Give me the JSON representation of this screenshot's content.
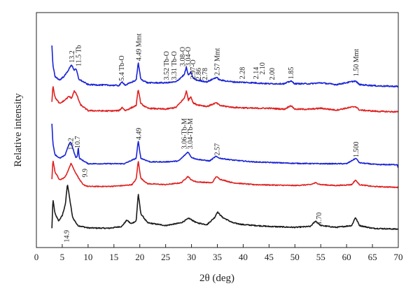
{
  "chart_data": {
    "type": "line",
    "xlabel": "2θ (deg)",
    "ylabel": "Relative intensity",
    "xlim": [
      0,
      70
    ],
    "xticks": [
      "0",
      "5",
      "10",
      "15",
      "20",
      "25",
      "30",
      "35",
      "40",
      "45",
      "50",
      "55",
      "60",
      "65",
      "70"
    ],
    "y_ticks_shown": false,
    "grid": false,
    "legend": "none",
    "series": [
      {
        "color": "#1a1a1a",
        "offset": 0,
        "noise": 0.03,
        "points": [
          [
            3.0,
            0.1
          ],
          [
            3.2,
            1.7
          ],
          [
            3.6,
            0.9
          ],
          [
            4.3,
            0.5
          ],
          [
            5.0,
            0.8
          ],
          [
            5.6,
            1.4
          ],
          [
            6.0,
            2.55
          ],
          [
            6.4,
            1.8
          ],
          [
            7.0,
            0.7
          ],
          [
            8.0,
            0.25
          ],
          [
            10,
            0.12
          ],
          [
            14,
            0.1
          ],
          [
            16.5,
            0.2
          ],
          [
            17.5,
            0.55
          ],
          [
            18.3,
            0.35
          ],
          [
            19.3,
            0.5
          ],
          [
            19.7,
            2.0
          ],
          [
            20.2,
            0.9
          ],
          [
            21.5,
            0.4
          ],
          [
            25,
            0.25
          ],
          [
            28,
            0.4
          ],
          [
            29.5,
            0.65
          ],
          [
            31,
            0.4
          ],
          [
            33,
            0.3
          ],
          [
            34.5,
            0.7
          ],
          [
            35.0,
            1.0
          ],
          [
            36,
            0.7
          ],
          [
            38,
            0.4
          ],
          [
            40,
            0.3
          ],
          [
            45,
            0.2
          ],
          [
            50,
            0.15
          ],
          [
            53,
            0.2
          ],
          [
            54,
            0.5
          ],
          [
            55,
            0.25
          ],
          [
            58,
            0.15
          ],
          [
            61,
            0.25
          ],
          [
            61.7,
            0.7
          ],
          [
            62.5,
            0.25
          ],
          [
            65,
            0.1
          ],
          [
            70,
            0.05
          ]
        ]
      },
      {
        "color": "#e02020",
        "offset": 2.3,
        "noise": 0.025,
        "points": [
          [
            3.0,
            0.5
          ],
          [
            3.2,
            1.55
          ],
          [
            3.6,
            0.9
          ],
          [
            4.5,
            0.45
          ],
          [
            5.5,
            0.6
          ],
          [
            6.2,
            1.0
          ],
          [
            6.7,
            1.4
          ],
          [
            7.3,
            1.0
          ],
          [
            8.3,
            0.5
          ],
          [
            9.0,
            0.2
          ],
          [
            10,
            0.1
          ],
          [
            14,
            0.1
          ],
          [
            17,
            0.15
          ],
          [
            18.5,
            0.2
          ],
          [
            19.3,
            0.5
          ],
          [
            19.7,
            1.5
          ],
          [
            20.2,
            0.55
          ],
          [
            21.5,
            0.25
          ],
          [
            25,
            0.2
          ],
          [
            28,
            0.3
          ],
          [
            29.3,
            0.65
          ],
          [
            30,
            0.45
          ],
          [
            31,
            0.35
          ],
          [
            34,
            0.3
          ],
          [
            34.8,
            0.65
          ],
          [
            35.5,
            0.5
          ],
          [
            38,
            0.3
          ],
          [
            42,
            0.2
          ],
          [
            50,
            0.15
          ],
          [
            53,
            0.2
          ],
          [
            54,
            0.3
          ],
          [
            55,
            0.2
          ],
          [
            58,
            0.15
          ],
          [
            61,
            0.2
          ],
          [
            61.7,
            0.45
          ],
          [
            62.5,
            0.2
          ],
          [
            65,
            0.1
          ],
          [
            70,
            0.05
          ]
        ]
      },
      {
        "color": "#1a24d6",
        "offset": 3.55,
        "noise": 0.025,
        "points": [
          [
            3.0,
            2.3
          ],
          [
            3.2,
            1.2
          ],
          [
            3.6,
            0.6
          ],
          [
            4.5,
            0.4
          ],
          [
            5.5,
            0.55
          ],
          [
            6.2,
            1.1
          ],
          [
            6.6,
            1.3
          ],
          [
            7.1,
            0.9
          ],
          [
            7.6,
            0.45
          ],
          [
            7.9,
            0.5
          ],
          [
            8.1,
            1.0
          ],
          [
            8.3,
            0.4
          ],
          [
            10,
            0.1
          ],
          [
            14,
            0.1
          ],
          [
            17,
            0.1
          ],
          [
            19.3,
            0.4
          ],
          [
            19.7,
            1.35
          ],
          [
            20.2,
            0.4
          ],
          [
            22,
            0.2
          ],
          [
            25,
            0.2
          ],
          [
            27.5,
            0.25
          ],
          [
            28.8,
            0.6
          ],
          [
            29.3,
            0.75
          ],
          [
            30,
            0.45
          ],
          [
            31,
            0.35
          ],
          [
            33.5,
            0.25
          ],
          [
            34.7,
            0.5
          ],
          [
            35.5,
            0.4
          ],
          [
            38,
            0.3
          ],
          [
            42,
            0.2
          ],
          [
            50,
            0.12
          ],
          [
            55,
            0.1
          ],
          [
            60,
            0.1
          ],
          [
            61.8,
            0.4
          ],
          [
            62.5,
            0.15
          ],
          [
            66,
            0.05
          ],
          [
            69.8,
            0.05
          ],
          [
            70,
            -0.15
          ]
        ]
      },
      {
        "color": "#e02020",
        "offset": 6.45,
        "noise": 0.035,
        "points": [
          [
            3.0,
            0.6
          ],
          [
            3.2,
            1.5
          ],
          [
            3.6,
            0.85
          ],
          [
            4.5,
            0.5
          ],
          [
            5.5,
            0.7
          ],
          [
            6.3,
            0.9
          ],
          [
            6.8,
            0.8
          ],
          [
            7.3,
            1.2
          ],
          [
            7.8,
            1.0
          ],
          [
            8.5,
            0.45
          ],
          [
            10,
            0.12
          ],
          [
            14,
            0.1
          ],
          [
            16,
            0.12
          ],
          [
            16.6,
            0.3
          ],
          [
            17.2,
            0.12
          ],
          [
            19.3,
            0.4
          ],
          [
            19.7,
            1.3
          ],
          [
            20.2,
            0.5
          ],
          [
            21.5,
            0.25
          ],
          [
            25,
            0.2
          ],
          [
            27,
            0.3
          ],
          [
            28.6,
            0.8
          ],
          [
            29.0,
            1.2
          ],
          [
            29.4,
            0.7
          ],
          [
            29.9,
            0.9
          ],
          [
            30.3,
            0.55
          ],
          [
            31,
            0.45
          ],
          [
            33,
            0.35
          ],
          [
            34.8,
            0.55
          ],
          [
            35.5,
            0.4
          ],
          [
            38,
            0.3
          ],
          [
            42,
            0.25
          ],
          [
            45,
            0.25
          ],
          [
            48,
            0.2
          ],
          [
            49.2,
            0.4
          ],
          [
            50,
            0.2
          ],
          [
            53,
            0.2
          ],
          [
            55,
            0.25
          ],
          [
            58,
            0.15
          ],
          [
            61.7,
            0.35
          ],
          [
            62.5,
            0.15
          ],
          [
            66,
            0.08
          ],
          [
            70,
            0.05
          ]
        ]
      },
      {
        "color": "#1a24d6",
        "offset": 7.85,
        "noise": 0.035,
        "points": [
          [
            3.0,
            2.3
          ],
          [
            3.2,
            1.2
          ],
          [
            3.6,
            0.6
          ],
          [
            4.5,
            0.4
          ],
          [
            5.5,
            0.65
          ],
          [
            6.3,
            1.0
          ],
          [
            6.8,
            1.25
          ],
          [
            7.3,
            0.95
          ],
          [
            7.7,
            1.0
          ],
          [
            8.2,
            0.45
          ],
          [
            10,
            0.15
          ],
          [
            14,
            0.12
          ],
          [
            16,
            0.1
          ],
          [
            16.6,
            0.3
          ],
          [
            17.2,
            0.12
          ],
          [
            19.3,
            0.4
          ],
          [
            19.7,
            1.35
          ],
          [
            20.2,
            0.45
          ],
          [
            21.5,
            0.25
          ],
          [
            25,
            0.25
          ],
          [
            27,
            0.3
          ],
          [
            28.6,
            0.7
          ],
          [
            29.0,
            1.1
          ],
          [
            29.4,
            0.65
          ],
          [
            29.9,
            0.85
          ],
          [
            30.3,
            0.5
          ],
          [
            31,
            0.4
          ],
          [
            33,
            0.3
          ],
          [
            34.8,
            0.55
          ],
          [
            35.5,
            0.4
          ],
          [
            38,
            0.3
          ],
          [
            42,
            0.25
          ],
          [
            45,
            0.2
          ],
          [
            48,
            0.2
          ],
          [
            49.2,
            0.35
          ],
          [
            50,
            0.2
          ],
          [
            53,
            0.2
          ],
          [
            55,
            0.25
          ],
          [
            58,
            0.15
          ],
          [
            61.7,
            0.35
          ],
          [
            62.5,
            0.15
          ],
          [
            66,
            0.08
          ],
          [
            70,
            0.05
          ]
        ]
      }
    ],
    "annotations": [
      {
        "text": "14.9",
        "x": 6.0,
        "y": 0.0,
        "rot": -90,
        "anchor": "end"
      },
      {
        "text": "1.70",
        "x": 54.8,
        "y": 0.3,
        "rot": -90,
        "anchor": "start"
      },
      {
        "text": "9.9",
        "x": 9.5,
        "y": 2.9,
        "rot": -90,
        "anchor": "start"
      },
      {
        "text": "13.2",
        "x": 6.8,
        "y": 4.4,
        "rot": -90,
        "anchor": "start"
      },
      {
        "text": "10.7",
        "x": 8.1,
        "y": 4.5,
        "rot": -90,
        "anchor": "start"
      },
      {
        "text": "4.49",
        "x": 19.9,
        "y": 4.95,
        "rot": -90,
        "anchor": "start"
      },
      {
        "text": "3.06-Tb-M",
        "x": 28.7,
        "y": 4.45,
        "rot": -90,
        "anchor": "start"
      },
      {
        "text": "3.04-Tb-M",
        "x": 29.9,
        "y": 4.45,
        "rot": -90,
        "anchor": "start"
      },
      {
        "text": "2.57",
        "x": 35.1,
        "y": 4.1,
        "rot": -90,
        "anchor": "start"
      },
      {
        "text": "1.500",
        "x": 62.0,
        "y": 4.0,
        "rot": -90,
        "anchor": "start"
      },
      {
        "text": "13.2",
        "x": 7.0,
        "y": 9.2,
        "rot": -90,
        "anchor": "start"
      },
      {
        "text": "11.5 Tb",
        "x": 8.3,
        "y": 9.0,
        "rot": -90,
        "anchor": "start"
      },
      {
        "text": "5.4 Tb-O",
        "x": 16.6,
        "y": 8.2,
        "rot": -90,
        "anchor": "start"
      },
      {
        "text": "4.49 Mmt",
        "x": 19.9,
        "y": 9.3,
        "rot": -90,
        "anchor": "start"
      },
      {
        "text": "3.52 Tb-O",
        "x": 25.3,
        "y": 8.25,
        "rot": -90,
        "anchor": "start"
      },
      {
        "text": "3.31 Tb-O",
        "x": 26.8,
        "y": 8.25,
        "rot": -90,
        "anchor": "start"
      },
      {
        "text": "3.08-O",
        "x": 28.4,
        "y": 9.0,
        "rot": -90,
        "anchor": "start"
      },
      {
        "text": "3.04-O",
        "x": 29.5,
        "y": 9.0,
        "rot": -90,
        "anchor": "start"
      },
      {
        "text": "2.97-O",
        "x": 30.4,
        "y": 8.3,
        "rot": -90,
        "anchor": "start"
      },
      {
        "text": "2.86",
        "x": 31.5,
        "y": 8.25,
        "rot": -90,
        "anchor": "start"
      },
      {
        "text": "2.78",
        "x": 32.7,
        "y": 8.25,
        "rot": -90,
        "anchor": "start"
      },
      {
        "text": "2.57 Mmt",
        "x": 35.1,
        "y": 8.5,
        "rot": -90,
        "anchor": "start"
      },
      {
        "text": "2.28",
        "x": 40.0,
        "y": 8.3,
        "rot": -90,
        "anchor": "start"
      },
      {
        "text": "2.14",
        "x": 42.6,
        "y": 8.3,
        "rot": -90,
        "anchor": "start"
      },
      {
        "text": "2.10",
        "x": 43.8,
        "y": 8.55,
        "rot": -90,
        "anchor": "start"
      },
      {
        "text": "2.00",
        "x": 45.7,
        "y": 8.25,
        "rot": -90,
        "anchor": "start"
      },
      {
        "text": "1.85",
        "x": 49.4,
        "y": 8.3,
        "rot": -90,
        "anchor": "start"
      },
      {
        "text": "1.50 Mmt",
        "x": 62.0,
        "y": 8.45,
        "rot": -90,
        "anchor": "start"
      }
    ]
  }
}
